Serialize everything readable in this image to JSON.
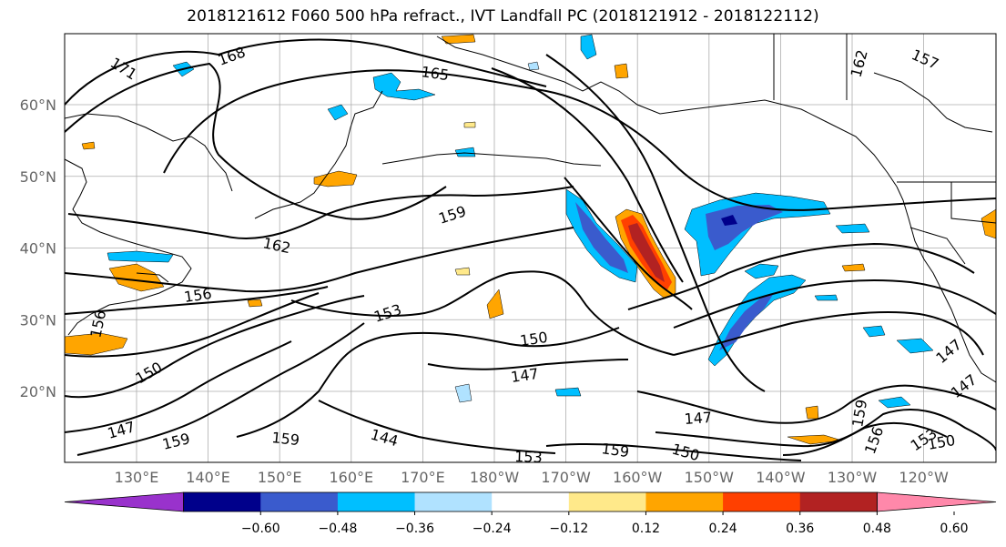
{
  "title": "2018121612 F060 500 hPa refract., IVT Landfall PC (2018121912 - 2018122112)",
  "lat_ticks": [
    {
      "label": "60°N",
      "lat": 60
    },
    {
      "label": "50°N",
      "lat": 50
    },
    {
      "label": "40°N",
      "lat": 40
    },
    {
      "label": "30°N",
      "lat": 30
    },
    {
      "label": "20°N",
      "lat": 20
    }
  ],
  "lon_ticks": [
    {
      "label": "130°E",
      "lon": 130
    },
    {
      "label": "140°E",
      "lon": 140
    },
    {
      "label": "150°E",
      "lon": 150
    },
    {
      "label": "160°E",
      "lon": 160
    },
    {
      "label": "170°E",
      "lon": 170
    },
    {
      "label": "180°W",
      "lon": 180
    },
    {
      "label": "170°W",
      "lon": 190
    },
    {
      "label": "160°W",
      "lon": 200
    },
    {
      "label": "150°W",
      "lon": 210
    },
    {
      "label": "140°W",
      "lon": 220
    },
    {
      "label": "130°W",
      "lon": 230
    },
    {
      "label": "120°W",
      "lon": 240
    }
  ],
  "contour_labels": [
    {
      "text": "171"
    },
    {
      "text": "168"
    },
    {
      "text": "165"
    },
    {
      "text": "162"
    },
    {
      "text": "162"
    },
    {
      "text": "159"
    },
    {
      "text": "156"
    },
    {
      "text": "153"
    },
    {
      "text": "150"
    },
    {
      "text": "150"
    },
    {
      "text": "147"
    },
    {
      "text": "147"
    },
    {
      "text": "147"
    },
    {
      "text": "147"
    },
    {
      "text": "144"
    },
    {
      "text": "159"
    },
    {
      "text": "159"
    },
    {
      "text": "153"
    },
    {
      "text": "150"
    },
    {
      "text": "159"
    },
    {
      "text": "150"
    },
    {
      "text": "156"
    },
    {
      "text": "153"
    },
    {
      "text": "147"
    },
    {
      "text": "156"
    },
    {
      "text": "150"
    },
    {
      "text": "159"
    },
    {
      "text": "153"
    },
    {
      "text": "157"
    }
  ],
  "colorbar": {
    "colors": [
      "#9932cc",
      "#00008b",
      "#3a5bcd",
      "#00bfff",
      "#b0e2ff",
      "#ffffff",
      "#ffe98a",
      "#ffa500",
      "#ff4000",
      "#b22222",
      "#ff88aa"
    ],
    "labels": [
      "−0.60",
      "−0.48",
      "−0.36",
      "−0.24",
      "−0.12",
      "0.12",
      "0.24",
      "0.36",
      "0.48",
      "0.60"
    ]
  },
  "shading_colors": {
    "neg_strong": "#00008b",
    "neg_med": "#3a5bcd",
    "neg_light": "#00bfff",
    "neg_faint": "#b0e2ff",
    "pos_faint": "#ffe98a",
    "pos_light": "#ffa500",
    "pos_med": "#ff4000",
    "pos_strong": "#b22222"
  }
}
